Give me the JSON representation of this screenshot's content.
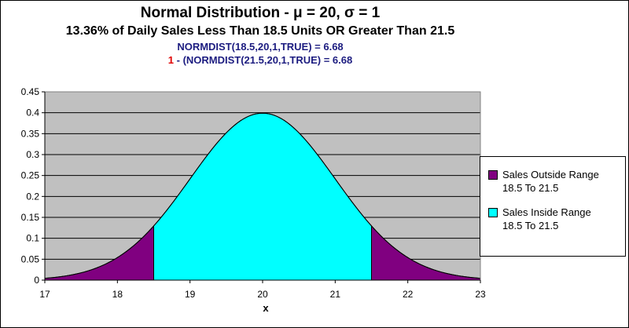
{
  "chart_data": {
    "type": "area",
    "title": "Normal Distribution - μ = 20,  σ = 1",
    "subtitle": "13.36% of Daily Sales Less Than 18.5 Units OR Greater Than 21.5",
    "annotations": {
      "line1": "NORMDIST(18.5,20,1,TRUE) = 6.68",
      "line2_prefix": "1",
      "line2_rest": " - (NORMDIST(21.5,20,1,TRUE) = 6.68"
    },
    "mu": 20,
    "sigma": 1,
    "xlabel": "x",
    "ylabel": "",
    "xlim": [
      17,
      23
    ],
    "ylim": [
      0,
      0.45
    ],
    "x_ticks": [
      "17",
      "18",
      "19",
      "20",
      "21",
      "22",
      "23"
    ],
    "y_ticks": [
      "0",
      "0.05",
      "0.1",
      "0.15",
      "0.2",
      "0.25",
      "0.3",
      "0.35",
      "0.4",
      "0.45"
    ],
    "grid": true,
    "legend_position": "right",
    "series": [
      {
        "name_line1": "Sales Outside Range",
        "name_line2": "18.5 To 21.5",
        "color": "#800080",
        "ranges": [
          [
            17,
            18.5
          ],
          [
            21.5,
            23
          ]
        ]
      },
      {
        "name_line1": "Sales Inside Range",
        "name_line2": "18.5 To 21.5",
        "color": "#00ffff",
        "ranges": [
          [
            18.5,
            21.5
          ]
        ]
      }
    ],
    "plot_background": "#c0c0c0"
  }
}
